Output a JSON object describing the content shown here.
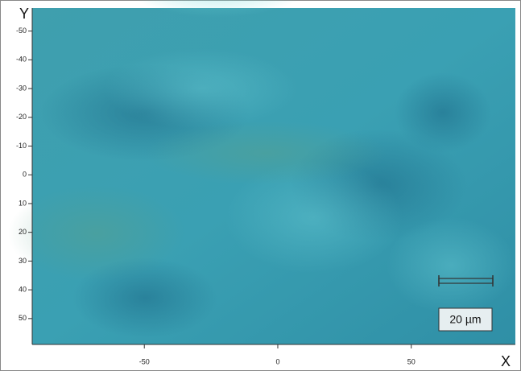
{
  "axes": {
    "x_label": "X",
    "y_label": "Y",
    "xlim": [
      -92,
      89
    ],
    "xticks": [
      -50,
      0,
      50
    ],
    "ylim": [
      -58,
      59
    ],
    "yticks": [
      -50,
      -40,
      -30,
      -20,
      -10,
      0,
      10,
      20,
      30,
      40,
      50
    ]
  },
  "scale_bar": {
    "label": "20 µm"
  }
}
